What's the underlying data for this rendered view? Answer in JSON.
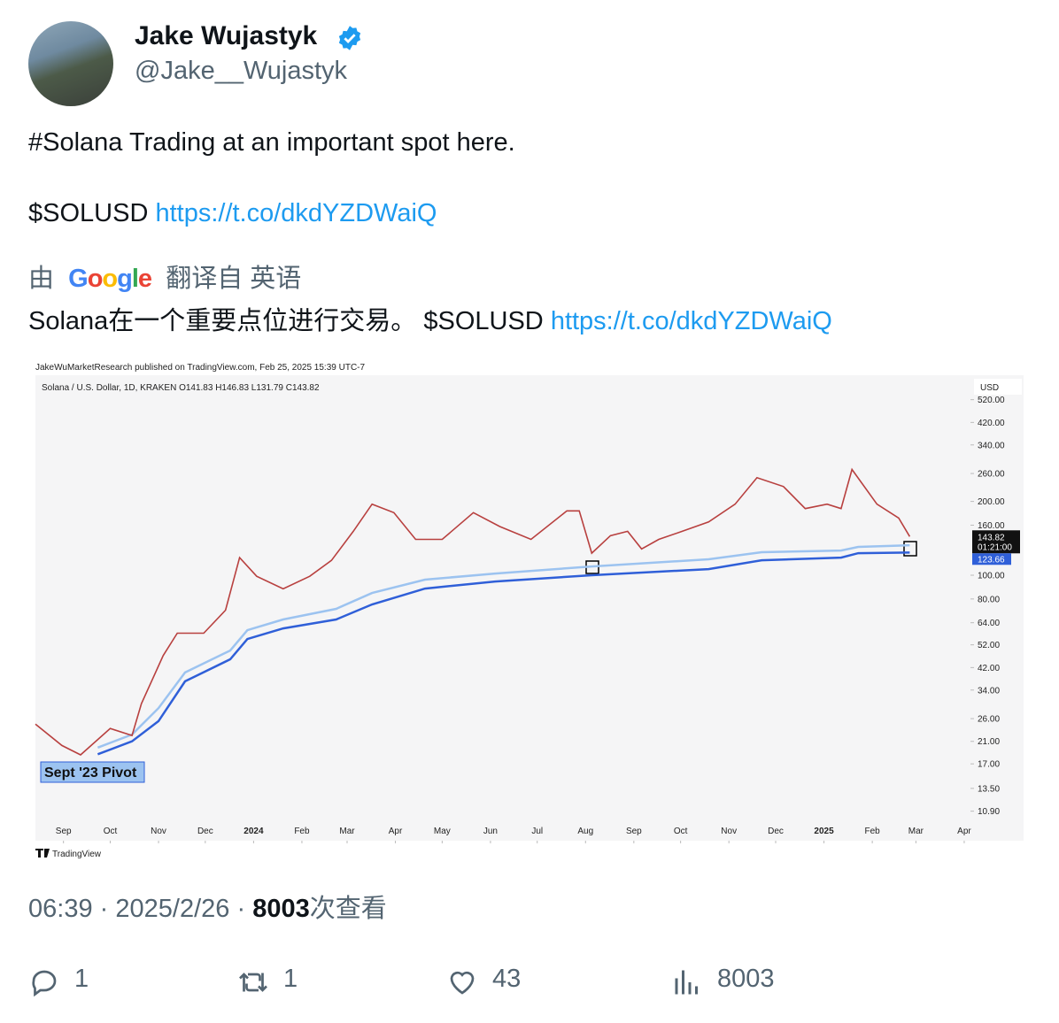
{
  "author": {
    "name": "Jake Wujastyk",
    "handle": "@Jake__Wujastyk"
  },
  "tweet": {
    "line1": "#Solana Trading at an important spot here.",
    "ticker": "$SOLUSD",
    "link": "https://t.co/dkdYZDWaiQ"
  },
  "translation": {
    "by": "由",
    "google": "Google",
    "from": "翻译自 英语",
    "text": "Solana在一个重要点位进行交易。 $SOLUSD",
    "link": "https://t.co/dkdYZDWaiQ"
  },
  "chart_data": {
    "type": "line",
    "log_scale": true,
    "publisher": "JakeWuMarketResearch published on TradingView.com, Feb 25, 2025 15:39 UTC-7",
    "title": "Solana / U.S. Dollar, 1D, KRAKEN  O141.83  H146.83  L131.79  C143.82",
    "currency": "USD",
    "countdown": "01:21:00",
    "annotation": "Sept '23 Pivot",
    "brand": "TradingView",
    "xlim": [
      -18,
      582
    ],
    "ylim": [
      8.26,
      649
    ],
    "xticks": [
      {
        "value": 0,
        "label": "Sep"
      },
      {
        "value": 30,
        "label": "Oct"
      },
      {
        "value": 61,
        "label": "Nov"
      },
      {
        "value": 91,
        "label": "Dec"
      },
      {
        "value": 122,
        "label": "2024"
      },
      {
        "value": 153,
        "label": "Feb"
      },
      {
        "value": 182,
        "label": "Mar"
      },
      {
        "value": 213,
        "label": "Apr"
      },
      {
        "value": 243,
        "label": "May"
      },
      {
        "value": 274,
        "label": "Jun"
      },
      {
        "value": 304,
        "label": "Jul"
      },
      {
        "value": 335,
        "label": "Aug"
      },
      {
        "value": 366,
        "label": "Sep"
      },
      {
        "value": 396,
        "label": "Oct"
      },
      {
        "value": 427,
        "label": "Nov"
      },
      {
        "value": 457,
        "label": "Dec"
      },
      {
        "value": 488,
        "label": "2025"
      },
      {
        "value": 519,
        "label": "Feb"
      },
      {
        "value": 547,
        "label": "Mar"
      },
      {
        "value": 578,
        "label": "Apr"
      }
    ],
    "yticks": [
      {
        "value": 520,
        "label": "520.00"
      },
      {
        "value": 420,
        "label": "420.00"
      },
      {
        "value": 340,
        "label": "340.00"
      },
      {
        "value": 260,
        "label": "260.00"
      },
      {
        "value": 200,
        "label": "200.00"
      },
      {
        "value": 160,
        "label": "160.00"
      },
      {
        "value": 100,
        "label": "100.00"
      },
      {
        "value": 80,
        "label": "80.00"
      },
      {
        "value": 64,
        "label": "64.00"
      },
      {
        "value": 52,
        "label": "52.00"
      },
      {
        "value": 42,
        "label": "42.00"
      },
      {
        "value": 34,
        "label": "34.00"
      },
      {
        "value": 26,
        "label": "26.00"
      },
      {
        "value": 21,
        "label": "21.00"
      },
      {
        "value": 17,
        "label": "17.00"
      },
      {
        "value": 13.5,
        "label": "13.50"
      },
      {
        "value": 10.9,
        "label": "10.90"
      }
    ],
    "series": [
      {
        "color": "#b8403f",
        "x": [
          -18,
          -1,
          11,
          30,
          44,
          50,
          64,
          73,
          90,
          104,
          113,
          124,
          141,
          158,
          172,
          186,
          198,
          212,
          226,
          243,
          263,
          280,
          300,
          323,
          331,
          339,
          351,
          362,
          371,
          382,
          397,
          414,
          431,
          445,
          462,
          476,
          490,
          499,
          506,
          522,
          536,
          543
        ],
        "values": [
          24.7,
          20.2,
          18.5,
          23.7,
          22.2,
          29.9,
          47,
          58,
          58,
          72,
          118,
          99,
          88,
          99,
          115,
          151,
          195,
          180,
          140,
          140,
          180,
          158,
          140,
          183,
          183,
          123,
          145,
          151,
          128,
          140,
          151,
          165,
          195,
          250,
          230,
          187,
          195,
          187,
          270,
          195,
          171,
          143.82
        ]
      },
      {
        "color": "#9cc3f0",
        "x": [
          22,
          44,
          61,
          78,
          107,
          118,
          141,
          175,
          198,
          232,
          277,
          339,
          414,
          448,
          499,
          510,
          543
        ],
        "values": [
          19.8,
          22.4,
          28.7,
          40.1,
          49.3,
          59.7,
          66.0,
          72.9,
          84.6,
          95.9,
          101.6,
          108.6,
          116.1,
          124.1,
          126.1,
          130.5,
          132.6
        ]
      },
      {
        "color": "#2f5fd8",
        "x": [
          22,
          44,
          61,
          78,
          107,
          118,
          141,
          175,
          198,
          232,
          277,
          339,
          414,
          448,
          499,
          510,
          543
        ],
        "values": [
          18.6,
          21.0,
          25.4,
          36.9,
          45.4,
          54.9,
          60.7,
          66.0,
          76.0,
          88.2,
          94.3,
          100.0,
          105.9,
          115.1,
          118.0,
          123.0,
          123.66
        ]
      }
    ]
  },
  "meta": {
    "time": "06:39",
    "sep": "·",
    "date": "2025/2/26",
    "views": "8003",
    "views_suffix": "次查看"
  },
  "actions": {
    "replies": "1",
    "reposts": "1",
    "likes": "43",
    "views": "8003"
  }
}
